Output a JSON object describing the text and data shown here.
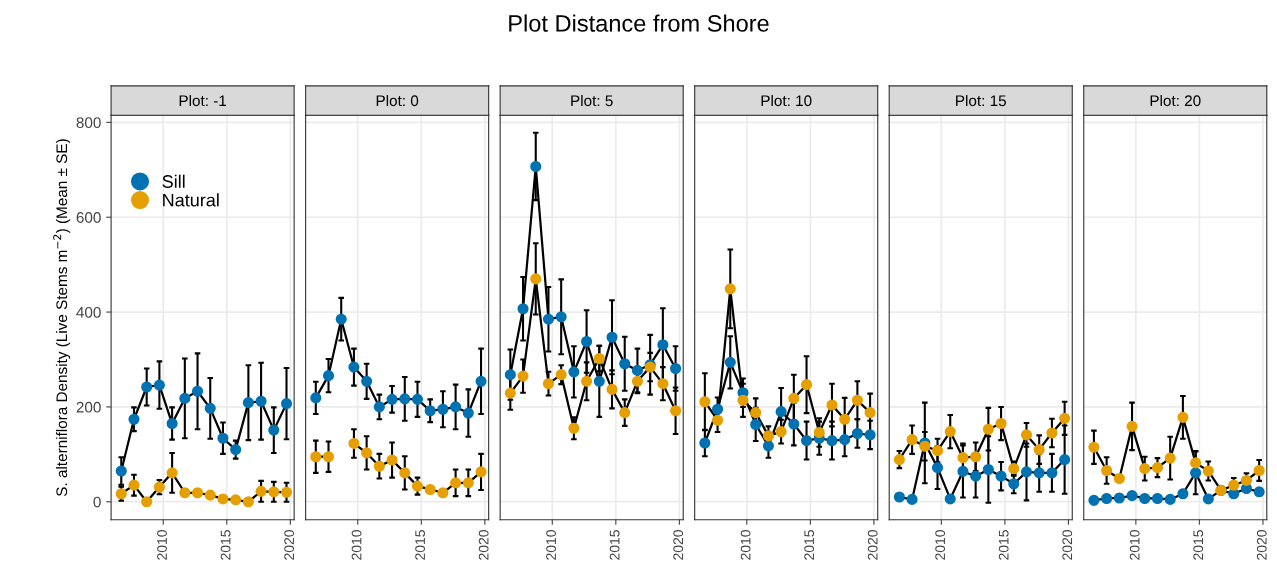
{
  "chart_data": [
    {
      "type": "line",
      "title": "Plot: -1",
      "annotations": [
        "Plot Distance from Shore"
      ],
      "ylabel": "S. alterniflora Density (Live Stems m$^{−2}$) (Mean ± SE)",
      "x": [
        2006.7,
        2007.7,
        2008.7,
        2009.7,
        2010.7,
        2011.7,
        2012.7,
        2013.7,
        2014.7,
        2015.7,
        2016.7,
        2017.7,
        2018.7,
        2019.7
      ],
      "xlim": [
        2005.9,
        2020.3
      ],
      "xticks": [
        2010,
        2015,
        2020
      ],
      "ylim": [
        -38,
        815
      ],
      "yticks": [
        0,
        200,
        400,
        600,
        800
      ],
      "grid": true,
      "legend": "top left",
      "marker": "circle",
      "series": [
        {
          "name": "Sill",
          "color": "#0072b2",
          "values": [
            65,
            174,
            242,
            246,
            165,
            218,
            233,
            197,
            134,
            110,
            209,
            212,
            151,
            207
          ],
          "errors": [
            29,
            25,
            39,
            50,
            34,
            84,
            80,
            64,
            33,
            19,
            79,
            81,
            48,
            75
          ]
        },
        {
          "name": "Natural",
          "color": "#e69f00",
          "values": [
            17,
            35,
            0,
            31,
            61,
            19,
            19,
            14,
            6,
            4,
            0,
            22,
            21,
            20
          ],
          "errors": [
            15,
            22,
            null,
            15,
            42,
            null,
            null,
            null,
            null,
            null,
            null,
            22,
            21,
            20
          ]
        }
      ]
    },
    {
      "type": "line",
      "title": "Plot: 0",
      "x": [
        2006.7,
        2007.7,
        2008.7,
        2009.7,
        2010.7,
        2011.7,
        2012.7,
        2013.7,
        2014.7,
        2015.7,
        2016.7,
        2017.7,
        2018.7,
        2019.7
      ],
      "xlim": [
        2005.9,
        2020.3
      ],
      "xticks": [
        2010,
        2015,
        2020
      ],
      "ylim": [
        -38,
        815
      ],
      "yticks": [
        0,
        200,
        400,
        600,
        800
      ],
      "tick_labels": "x",
      "grid": true,
      "marker": "circle",
      "series": [
        {
          "color": "#0072b2",
          "values": [
            219,
            266,
            385,
            284,
            254,
            200,
            216,
            217,
            216,
            192,
            195,
            200,
            187,
            254
          ],
          "errors": [
            34,
            35,
            45,
            39,
            37,
            26,
            28,
            46,
            37,
            24,
            38,
            47,
            50,
            69
          ]
        },
        {
          "color": "#e69f00",
          "values": [
            95,
            95,
            null,
            123,
            103,
            75,
            88,
            61,
            33,
            26,
            19,
            40,
            40,
            63
          ],
          "errors": [
            34,
            32,
            null,
            30,
            35,
            26,
            37,
            35,
            18,
            null,
            null,
            28,
            28,
            38
          ]
        }
      ]
    },
    {
      "type": "line",
      "title": "Plot: 5",
      "x": [
        2006.7,
        2007.7,
        2008.7,
        2009.7,
        2010.7,
        2011.7,
        2012.7,
        2013.7,
        2014.7,
        2015.7,
        2016.7,
        2017.7,
        2018.7,
        2019.7
      ],
      "xlim": [
        2005.9,
        2020.3
      ],
      "xticks": [
        2010,
        2015,
        2020
      ],
      "ylim": [
        -38,
        815
      ],
      "yticks": [
        0,
        200,
        400,
        600,
        800
      ],
      "tick_labels": "x",
      "grid": true,
      "marker": "circle",
      "series": [
        {
          "color": "#0072b2",
          "values": [
            268,
            407,
            707,
            385,
            390,
            274,
            338,
            254,
            347,
            291,
            277,
            289,
            331,
            281
          ],
          "errors": [
            53,
            67,
            71,
            68,
            79,
            54,
            66,
            75,
            78,
            57,
            46,
            63,
            77,
            47
          ]
        },
        {
          "color": "#e69f00",
          "values": [
            229,
            265,
            470,
            249,
            268,
            155,
            254,
            302,
            237,
            188,
            254,
            284,
            249,
            192
          ],
          "errors": [
            35,
            35,
            75,
            25,
            20,
            23,
            40,
            27,
            40,
            28,
            25,
            30,
            35,
            49
          ]
        }
      ]
    },
    {
      "type": "line",
      "title": "Plot: 10",
      "x": [
        2006.7,
        2007.7,
        2008.7,
        2009.7,
        2010.7,
        2011.7,
        2012.7,
        2013.7,
        2014.7,
        2015.7,
        2016.7,
        2017.7,
        2018.7,
        2019.7
      ],
      "xlim": [
        2005.9,
        2020.3
      ],
      "xticks": [
        2010,
        2015,
        2020
      ],
      "ylim": [
        -38,
        815
      ],
      "yticks": [
        0,
        200,
        400,
        600,
        800
      ],
      "tick_labels": "x",
      "grid": true,
      "marker": "circle",
      "series": [
        {
          "color": "#0072b2",
          "values": [
            124,
            195,
            294,
            230,
            163,
            118,
            190,
            164,
            129,
            134,
            129,
            131,
            144,
            141
          ],
          "errors": [
            28,
            25,
            55,
            30,
            35,
            25,
            50,
            45,
            40,
            35,
            40,
            35,
            30,
            30
          ]
        },
        {
          "color": "#e69f00",
          "values": [
            211,
            172,
            449,
            214,
            188,
            139,
            148,
            218,
            247,
            146,
            204,
            174,
            214,
            188
          ],
          "errors": [
            60,
            25,
            83,
            35,
            30,
            20,
            25,
            50,
            60,
            30,
            45,
            45,
            40,
            40
          ]
        }
      ]
    },
    {
      "type": "line",
      "title": "Plot: 15",
      "x": [
        2006.7,
        2007.7,
        2008.7,
        2009.7,
        2010.7,
        2011.7,
        2012.7,
        2013.7,
        2014.7,
        2015.7,
        2016.7,
        2017.7,
        2018.7,
        2019.7
      ],
      "xlim": [
        2005.9,
        2020.3
      ],
      "xticks": [
        2010,
        2015,
        2020
      ],
      "ylim": [
        -38,
        815
      ],
      "yticks": [
        0,
        200,
        400,
        600,
        800
      ],
      "tick_labels": "x",
      "grid": true,
      "marker": "circle",
      "series": [
        {
          "color": "#0072b2",
          "values": [
            10,
            5,
            124,
            72,
            6,
            64,
            54,
            68,
            54,
            38,
            63,
            61,
            61,
            89
          ],
          "errors": [
            null,
            null,
            85,
            45,
            null,
            55,
            45,
            70,
            30,
            20,
            60,
            40,
            40,
            72
          ]
        },
        {
          "color": "#e69f00",
          "values": [
            89,
            131,
            117,
            108,
            148,
            93,
            95,
            153,
            165,
            70,
            141,
            110,
            145,
            176
          ],
          "errors": [
            18,
            30,
            30,
            25,
            35,
            30,
            30,
            45,
            35,
            15,
            25,
            30,
            30,
            35
          ]
        }
      ]
    },
    {
      "type": "line",
      "title": "Plot: 20",
      "x": [
        2006.7,
        2007.7,
        2008.7,
        2009.7,
        2010.7,
        2011.7,
        2012.7,
        2013.7,
        2014.7,
        2015.7,
        2016.7,
        2017.7,
        2018.7,
        2019.7
      ],
      "xlim": [
        2005.9,
        2020.3
      ],
      "xticks": [
        2010,
        2015,
        2020
      ],
      "ylim": [
        -38,
        815
      ],
      "yticks": [
        0,
        200,
        400,
        600,
        800
      ],
      "tick_labels": "x",
      "grid": true,
      "marker": "circle",
      "series": [
        {
          "color": "#0072b2",
          "values": [
            3,
            7,
            8,
            13,
            7,
            7,
            5,
            17,
            61,
            6,
            24,
            17,
            28,
            21
          ],
          "errors": [
            null,
            null,
            null,
            null,
            null,
            null,
            null,
            null,
            45,
            null,
            null,
            null,
            null,
            null
          ]
        },
        {
          "color": "#e69f00",
          "values": [
            115,
            66,
            49,
            159,
            70,
            72,
            92,
            178,
            82,
            65,
            24,
            35,
            45,
            66
          ],
          "errors": [
            35,
            28,
            null,
            50,
            25,
            20,
            45,
            45,
            25,
            20,
            null,
            15,
            15,
            22
          ]
        }
      ]
    }
  ]
}
